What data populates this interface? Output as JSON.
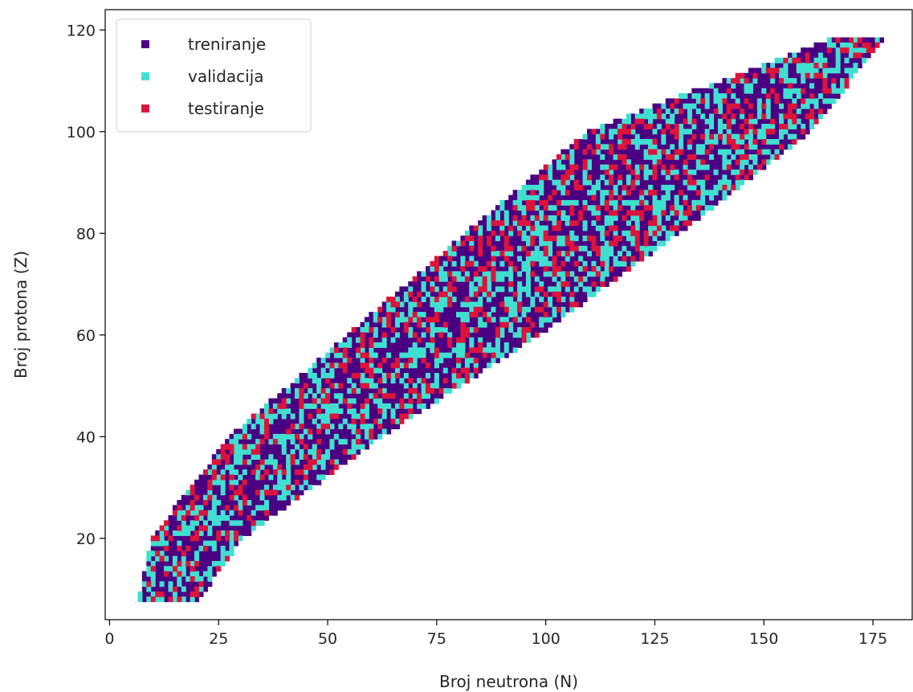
{
  "chart_data": {
    "type": "scatter",
    "xlabel": "Broj neutrona (N)",
    "ylabel": "Broj protona (Z)",
    "xlim": [
      -1,
      184
    ],
    "ylim": [
      4,
      124
    ],
    "xticks": [
      0,
      25,
      50,
      75,
      100,
      125,
      150,
      175
    ],
    "yticks": [
      20,
      40,
      60,
      80,
      100,
      120
    ],
    "grid": false,
    "legend_position": "top-left",
    "marker": "square",
    "region_band": {
      "z": [
        8,
        20,
        40,
        60,
        80,
        100,
        118
      ],
      "n_min": [
        7,
        10,
        28,
        55,
        82,
        110,
        165
      ],
      "n_max": [
        20,
        30,
        62,
        98,
        130,
        160,
        177
      ]
    },
    "series": [
      {
        "name": "treniranje",
        "color": "#4b0082",
        "points": []
      },
      {
        "name": "validacija",
        "color": "#40e0d0",
        "points": []
      },
      {
        "name": "testiranje",
        "color": "#dc143c",
        "points": []
      }
    ]
  }
}
